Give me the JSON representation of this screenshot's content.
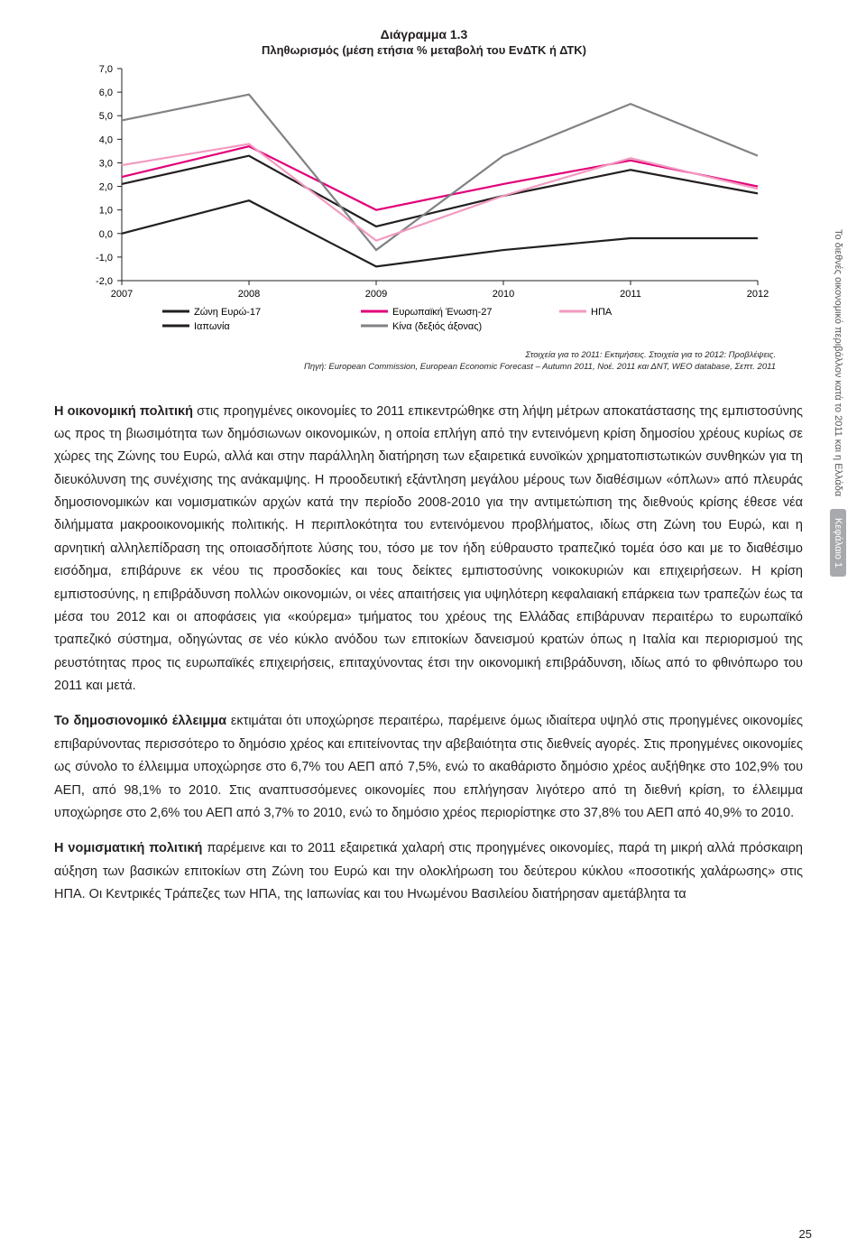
{
  "chart": {
    "type": "line",
    "title": "Διάγραμμα 1.3",
    "subtitle": "Πληθωρισμός (μέση ετήσια % μεταβολή του ΕνΔΤΚ ή ΔΤΚ)",
    "x_labels": [
      "2007",
      "2008",
      "2009",
      "2010",
      "2011",
      "2012"
    ],
    "ylim": [
      -2.0,
      7.0
    ],
    "ytick_step": 1.0,
    "background_color": "#ffffff",
    "axis_color": "#231f20",
    "tick_fontsize": 11,
    "series": {
      "eurozone17": {
        "label": "Ζώνη Ευρώ-17",
        "color": "#231f20",
        "values": [
          2.1,
          3.3,
          0.3,
          1.6,
          2.7,
          1.7
        ]
      },
      "japan": {
        "label": "Ιαπωνία",
        "color": "#231f20",
        "values": [
          0.0,
          1.4,
          -1.4,
          -0.7,
          -0.2,
          -0.2
        ]
      },
      "eu27": {
        "label": "Ευρωπαϊκή Ένωση-27",
        "color": "#e20079",
        "values": [
          2.4,
          3.7,
          1.0,
          2.1,
          3.1,
          2.0
        ]
      },
      "china": {
        "label": "Κίνα (δεξιός άξονας)",
        "color": "#808285",
        "values": [
          4.8,
          5.9,
          -0.7,
          3.3,
          5.5,
          3.3
        ]
      },
      "usa": {
        "label": "ΗΠΑ",
        "color": "#f29ac1",
        "values": [
          2.9,
          3.8,
          -0.3,
          1.6,
          3.2,
          1.9
        ]
      }
    },
    "legend_order": [
      "eurozone17",
      "japan",
      "eu27",
      "china",
      "usa"
    ],
    "source_line1": "Στοιχεία για το 2011: Εκτιμήσεις. Στοιχεία για το 2012: Προβλέψεις.",
    "source_line2": "Πηγή: European Commission, European Economic Forecast – Autumn 2011, Νοέ. 2011 και ΔΝΤ, WEO database, Σεπτ. 2011"
  },
  "side": {
    "line": "Το διεθνές οικονομικό περιβάλλον κατά το 2011 και η Ελλάδα",
    "chip": "Κεφάλαιο 1"
  },
  "body": {
    "p1_lead": "Η οικονομική πολιτική",
    "p1_rest": " στις προηγμένες οικονομίες το 2011 επικεντρώθηκε στη λήψη μέτρων αποκατάστασης της εμπιστοσύνης ως προς τη βιωσιμότητα των δημόσιωνων οικονομικών, η οποία επλήγη από την εντεινόμενη κρίση δημοσίου χρέους κυρίως σε χώρες της Ζώνης του Ευρώ, αλλά και στην παράλληλη διατήρηση των εξαιρετικά ευνοϊκών χρηματοπιστωτικών συνθηκών για τη διευκόλυνση της συνέχισης της ανάκαμψης. Η προοδευτική εξάντληση μεγάλου μέρους των διαθέσιμων «όπλων» από πλευράς δημοσιονομικών και νομισματικών αρχών κατά την περίοδο 2008-2010 για την αντιμετώπιση της διεθνούς κρίσης έθεσε νέα διλήμματα μακροοικονομικής πολιτικής. Η περιπλοκότητα του εντεινόμενου προβλήματος, ιδίως στη Ζώνη του Ευρώ, και η αρνητική αλληλεπίδραση της οποιασδήποτε λύσης του, τόσο με τον ήδη εύθραυστο τραπεζικό τομέα όσο και με το διαθέσιμο εισόδημα, επιβάρυνε εκ νέου τις προσδοκίες και τους δείκτες εμπιστοσύνης νοικοκυριών και επιχειρήσεων. Η κρίση εμπιστοσύνης, η επιβράδυνση πολλών οικονομιών, οι νέες απαιτήσεις για υψηλότερη κεφαλαιακή επάρκεια των τραπεζών έως τα μέσα του 2012 και οι αποφάσεις για «κούρεμα» τμήματος του χρέους της Ελλάδας επιβάρυναν περαιτέρω το ευρωπαϊκό τραπεζικό σύστημα, οδηγώντας σε νέο κύκλο ανόδου των επιτοκίων δανεισμού κρατών όπως η Ιταλία και περιορισμού της ρευστότητας προς τις ευρωπαϊκές επιχειρήσεις, επιταχύνοντας έτσι την οικονομική επιβράδυνση, ιδίως από το φθινόπωρο του 2011 και μετά.",
    "p2_lead": "Το δημοσιονομικό έλλειμμα",
    "p2_rest": " εκτιμάται ότι υποχώρησε περαιτέρω, παρέμεινε όμως ιδιαίτερα υψηλό στις προηγμένες οικονομίες επιβαρύνοντας περισσότερο το δημόσιο χρέος και επιτείνοντας την αβεβαιότητα στις διεθνείς αγορές. Στις προηγμένες οικονομίες ως σύνολο το έλλειμμα υποχώρησε στο 6,7% του ΑΕΠ από 7,5%, ενώ το ακαθάριστο δημόσιο χρέος αυξήθηκε στο 102,9% του ΑΕΠ, από 98,1% το 2010. Στις αναπτυσσόμενες οικονομίες που επλήγησαν λιγότερο από τη διεθνή κρίση, το έλλειμμα υποχώρησε στο 2,6% του ΑΕΠ από 3,7% το 2010, ενώ το δημόσιο χρέος περιορίστηκε στο 37,8% του ΑΕΠ από 40,9% το 2010.",
    "p3_lead": "Η νομισματική πολιτική",
    "p3_rest": " παρέμεινε και το 2011 εξαιρετικά χαλαρή στις προηγμένες οικονομίες, παρά τη μικρή αλλά πρόσκαιρη αύξηση των βασικών επιτοκίων στη Ζώνη του Ευρώ και την ολοκλήρωση του δεύτερου κύκλου «ποσοτικής χαλάρωσης» στις ΗΠΑ. Οι Κεντρικές Τράπεζες των ΗΠΑ, της Ιαπωνίας και του Ηνωμένου Βασιλείου διατήρησαν αμετάβλητα τα"
  },
  "page_number": "25"
}
